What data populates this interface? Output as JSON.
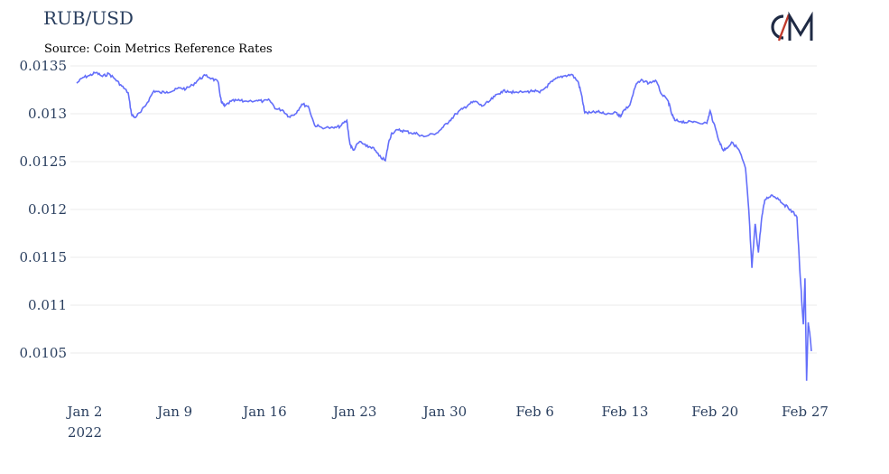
{
  "chart_data": {
    "type": "line",
    "title": "RUB/USD",
    "subtitle": "Source: Coin Metrics Reference Rates",
    "xlabel": "",
    "ylabel": "",
    "ylim": [
      0.0102,
      0.0135
    ],
    "y_ticks": [
      {
        "value": 0.0135,
        "label": "0.0135"
      },
      {
        "value": 0.013,
        "label": "0.013"
      },
      {
        "value": 0.0125,
        "label": "0.0125"
      },
      {
        "value": 0.012,
        "label": "0.012"
      },
      {
        "value": 0.0115,
        "label": "0.0115"
      },
      {
        "value": 0.011,
        "label": "0.011"
      },
      {
        "value": 0.0105,
        "label": "0.0105"
      }
    ],
    "x_ticks": [
      {
        "date": "2022-01-02",
        "label": "Jan 2",
        "sublabel": "2022"
      },
      {
        "date": "2022-01-09",
        "label": "Jan 9"
      },
      {
        "date": "2022-01-16",
        "label": "Jan 16"
      },
      {
        "date": "2022-01-23",
        "label": "Jan 23"
      },
      {
        "date": "2022-01-30",
        "label": "Jan 30"
      },
      {
        "date": "2022-02-06",
        "label": "Feb 6"
      },
      {
        "date": "2022-02-13",
        "label": "Feb 13"
      },
      {
        "date": "2022-02-20",
        "label": "Feb 20"
      },
      {
        "date": "2022-02-27",
        "label": "Feb 27"
      }
    ],
    "xlim": [
      "2022-01-02",
      "2022-02-28"
    ],
    "grid": true,
    "line_color": "#636efa",
    "series": [
      {
        "values": [
          {
            "x": "2022-01-02",
            "y": 0.01332
          },
          {
            "x": "2022-01-02 12:00",
            "y": 0.01338
          },
          {
            "x": "2022-01-03",
            "y": 0.0134
          },
          {
            "x": "2022-01-03 12:00",
            "y": 0.01343
          },
          {
            "x": "2022-01-04",
            "y": 0.01339
          },
          {
            "x": "2022-01-04 12:00",
            "y": 0.01342
          },
          {
            "x": "2022-01-05",
            "y": 0.01336
          },
          {
            "x": "2022-01-05 12:00",
            "y": 0.01329
          },
          {
            "x": "2022-01-06",
            "y": 0.01322
          },
          {
            "x": "2022-01-06 06:00",
            "y": 0.013
          },
          {
            "x": "2022-01-06 12:00",
            "y": 0.01296
          },
          {
            "x": "2022-01-07",
            "y": 0.01302
          },
          {
            "x": "2022-01-07 12:00",
            "y": 0.01312
          },
          {
            "x": "2022-01-08",
            "y": 0.01324
          },
          {
            "x": "2022-01-08 12:00",
            "y": 0.01322
          },
          {
            "x": "2022-01-09",
            "y": 0.01323
          },
          {
            "x": "2022-01-09 12:00",
            "y": 0.01324
          },
          {
            "x": "2022-01-10",
            "y": 0.01327
          },
          {
            "x": "2022-01-10 12:00",
            "y": 0.01326
          },
          {
            "x": "2022-01-11",
            "y": 0.0133
          },
          {
            "x": "2022-01-11 12:00",
            "y": 0.01336
          },
          {
            "x": "2022-01-12",
            "y": 0.0134
          },
          {
            "x": "2022-01-12 12:00",
            "y": 0.01337
          },
          {
            "x": "2022-01-13",
            "y": 0.01333
          },
          {
            "x": "2022-01-13 06:00",
            "y": 0.01312
          },
          {
            "x": "2022-01-13 12:00",
            "y": 0.01308
          },
          {
            "x": "2022-01-14",
            "y": 0.01313
          },
          {
            "x": "2022-01-14 12:00",
            "y": 0.01314
          },
          {
            "x": "2022-01-15",
            "y": 0.01313
          },
          {
            "x": "2022-01-16",
            "y": 0.01314
          },
          {
            "x": "2022-01-16 12:00",
            "y": 0.01313
          },
          {
            "x": "2022-01-17",
            "y": 0.01314
          },
          {
            "x": "2022-01-17 12:00",
            "y": 0.01305
          },
          {
            "x": "2022-01-18",
            "y": 0.01304
          },
          {
            "x": "2022-01-18 12:00",
            "y": 0.01297
          },
          {
            "x": "2022-01-19",
            "y": 0.013
          },
          {
            "x": "2022-01-19 12:00",
            "y": 0.0131
          },
          {
            "x": "2022-01-20",
            "y": 0.01308
          },
          {
            "x": "2022-01-20 12:00",
            "y": 0.01288
          },
          {
            "x": "2022-01-21",
            "y": 0.01286
          },
          {
            "x": "2022-01-22",
            "y": 0.01285
          },
          {
            "x": "2022-01-22 12:00",
            "y": 0.01287
          },
          {
            "x": "2022-01-23",
            "y": 0.01293
          },
          {
            "x": "2022-01-23 06:00",
            "y": 0.01268
          },
          {
            "x": "2022-01-23 12:00",
            "y": 0.01262
          },
          {
            "x": "2022-01-24",
            "y": 0.01271
          },
          {
            "x": "2022-01-24 12:00",
            "y": 0.01266
          },
          {
            "x": "2022-01-25",
            "y": 0.01265
          },
          {
            "x": "2022-01-25 12:00",
            "y": 0.01256
          },
          {
            "x": "2022-01-26",
            "y": 0.01251
          },
          {
            "x": "2022-01-26 06:00",
            "y": 0.0127
          },
          {
            "x": "2022-01-26 12:00",
            "y": 0.0128
          },
          {
            "x": "2022-01-27",
            "y": 0.01283
          },
          {
            "x": "2022-01-27 12:00",
            "y": 0.01282
          },
          {
            "x": "2022-01-28",
            "y": 0.0128
          },
          {
            "x": "2022-01-28 12:00",
            "y": 0.01279
          },
          {
            "x": "2022-01-29",
            "y": 0.01276
          },
          {
            "x": "2022-01-30",
            "y": 0.0128
          },
          {
            "x": "2022-01-30 12:00",
            "y": 0.01286
          },
          {
            "x": "2022-01-31",
            "y": 0.01293
          },
          {
            "x": "2022-01-31 12:00",
            "y": 0.013
          },
          {
            "x": "2022-02-01",
            "y": 0.01305
          },
          {
            "x": "2022-02-01 12:00",
            "y": 0.0131
          },
          {
            "x": "2022-02-02",
            "y": 0.01313
          },
          {
            "x": "2022-02-02 12:00",
            "y": 0.01308
          },
          {
            "x": "2022-02-03",
            "y": 0.01312
          },
          {
            "x": "2022-02-03 12:00",
            "y": 0.01318
          },
          {
            "x": "2022-02-04",
            "y": 0.01323
          },
          {
            "x": "2022-02-04 12:00",
            "y": 0.01324
          },
          {
            "x": "2022-02-05",
            "y": 0.01322
          },
          {
            "x": "2022-02-06",
            "y": 0.01323
          },
          {
            "x": "2022-02-06 12:00",
            "y": 0.01324
          },
          {
            "x": "2022-02-07",
            "y": 0.01322
          },
          {
            "x": "2022-02-07 12:00",
            "y": 0.01328
          },
          {
            "x": "2022-02-08",
            "y": 0.01334
          },
          {
            "x": "2022-02-08 12:00",
            "y": 0.01338
          },
          {
            "x": "2022-02-09",
            "y": 0.0134
          },
          {
            "x": "2022-02-09 12:00",
            "y": 0.01341
          },
          {
            "x": "2022-02-10",
            "y": 0.01333
          },
          {
            "x": "2022-02-10 06:00",
            "y": 0.0132
          },
          {
            "x": "2022-02-10 12:00",
            "y": 0.01301
          },
          {
            "x": "2022-02-11",
            "y": 0.01301
          },
          {
            "x": "2022-02-11 12:00",
            "y": 0.01302
          },
          {
            "x": "2022-02-12",
            "y": 0.013
          },
          {
            "x": "2022-02-13",
            "y": 0.01301
          },
          {
            "x": "2022-02-13 06:00",
            "y": 0.01297
          },
          {
            "x": "2022-02-13 12:00",
            "y": 0.01303
          },
          {
            "x": "2022-02-14",
            "y": 0.01309
          },
          {
            "x": "2022-02-14 12:00",
            "y": 0.01331
          },
          {
            "x": "2022-02-15",
            "y": 0.01335
          },
          {
            "x": "2022-02-15 12:00",
            "y": 0.01332
          },
          {
            "x": "2022-02-16",
            "y": 0.01335
          },
          {
            "x": "2022-02-16 12:00",
            "y": 0.0132
          },
          {
            "x": "2022-02-17",
            "y": 0.01313
          },
          {
            "x": "2022-02-17 06:00",
            "y": 0.013
          },
          {
            "x": "2022-02-17 12:00",
            "y": 0.01293
          },
          {
            "x": "2022-02-18",
            "y": 0.01292
          },
          {
            "x": "2022-02-18 12:00",
            "y": 0.01291
          },
          {
            "x": "2022-02-19",
            "y": 0.01292
          },
          {
            "x": "2022-02-20",
            "y": 0.0129
          },
          {
            "x": "2022-02-20 06:00",
            "y": 0.01303
          },
          {
            "x": "2022-02-20 12:00",
            "y": 0.01291
          },
          {
            "x": "2022-02-21",
            "y": 0.0127
          },
          {
            "x": "2022-02-21 06:00",
            "y": 0.01262
          },
          {
            "x": "2022-02-21 12:00",
            "y": 0.01264
          },
          {
            "x": "2022-02-22",
            "y": 0.0127
          },
          {
            "x": "2022-02-22 12:00",
            "y": 0.01262
          },
          {
            "x": "2022-02-23",
            "y": 0.01243
          },
          {
            "x": "2022-02-23 06:00",
            "y": 0.012
          },
          {
            "x": "2022-02-23 12:00",
            "y": 0.01139
          },
          {
            "x": "2022-02-23 18:00",
            "y": 0.01185
          },
          {
            "x": "2022-02-24",
            "y": 0.01155
          },
          {
            "x": "2022-02-24 06:00",
            "y": 0.0119
          },
          {
            "x": "2022-02-24 12:00",
            "y": 0.0121
          },
          {
            "x": "2022-02-25",
            "y": 0.01215
          },
          {
            "x": "2022-02-25 12:00",
            "y": 0.01212
          },
          {
            "x": "2022-02-26",
            "y": 0.01205
          },
          {
            "x": "2022-02-26 12:00",
            "y": 0.012
          },
          {
            "x": "2022-02-27",
            "y": 0.01192
          },
          {
            "x": "2022-02-27 06:00",
            "y": 0.0113
          },
          {
            "x": "2022-02-27 12:00",
            "y": 0.0108
          },
          {
            "x": "2022-02-27 15:00",
            "y": 0.01128
          },
          {
            "x": "2022-02-27 18:00",
            "y": 0.01021
          },
          {
            "x": "2022-02-27 21:00",
            "y": 0.01082
          },
          {
            "x": "2022-02-28",
            "y": 0.0107
          },
          {
            "x": "2022-02-28 03:00",
            "y": 0.01052
          }
        ]
      }
    ]
  }
}
